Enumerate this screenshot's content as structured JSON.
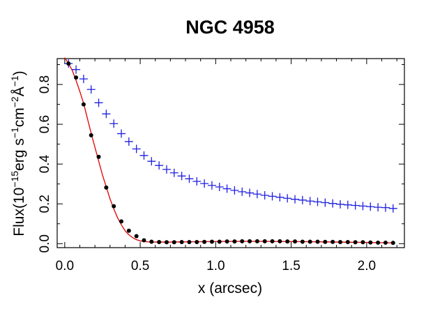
{
  "chart_data": {
    "type": "scatter",
    "title": "NGC 4958",
    "xlabel": "x (arcsec)",
    "ylabel": {
      "prefix": "Flux(10",
      "exp1": "−15",
      "mid1": "erg s",
      "exp2": "−1",
      "mid2": "cm",
      "exp3": "−2",
      "mid3": "Å",
      "exp4": "−1",
      "suffix": ")"
    },
    "xlim": [
      -0.05,
      2.25
    ],
    "ylim": [
      -0.02,
      0.93
    ],
    "xticks": [
      0.0,
      0.5,
      1.0,
      1.5,
      2.0
    ],
    "xtick_labels": [
      "0.0",
      "0.5",
      "1.0",
      "1.5",
      "2.0"
    ],
    "yticks": [
      0.0,
      0.2,
      0.4,
      0.6,
      0.8
    ],
    "ytick_labels": [
      "0.0",
      "0.2",
      "0.4",
      "0.6",
      "0.8"
    ],
    "colors": {
      "plus_series": "#1f1fe0",
      "dot_series": "#000000",
      "fit_line": "#e01010",
      "axes": "#000000"
    },
    "series": [
      {
        "name": "blue plus points",
        "marker": "plus",
        "x": [
          0.025,
          0.075,
          0.125,
          0.175,
          0.225,
          0.275,
          0.325,
          0.375,
          0.425,
          0.475,
          0.525,
          0.575,
          0.625,
          0.675,
          0.725,
          0.775,
          0.825,
          0.875,
          0.925,
          0.975,
          1.025,
          1.075,
          1.125,
          1.175,
          1.225,
          1.275,
          1.325,
          1.375,
          1.425,
          1.475,
          1.525,
          1.575,
          1.625,
          1.675,
          1.725,
          1.775,
          1.825,
          1.875,
          1.925,
          1.975,
          2.025,
          2.075,
          2.125,
          2.175
        ],
        "y": [
          0.905,
          0.875,
          0.828,
          0.775,
          0.708,
          0.652,
          0.603,
          0.553,
          0.513,
          0.476,
          0.443,
          0.414,
          0.393,
          0.373,
          0.356,
          0.34,
          0.326,
          0.313,
          0.302,
          0.293,
          0.285,
          0.276,
          0.268,
          0.261,
          0.255,
          0.249,
          0.243,
          0.238,
          0.233,
          0.228,
          0.223,
          0.219,
          0.214,
          0.21,
          0.206,
          0.202,
          0.198,
          0.195,
          0.192,
          0.189,
          0.186,
          0.183,
          0.181,
          0.177
        ]
      },
      {
        "name": "black dot points",
        "marker": "dot",
        "x": [
          0.025,
          0.075,
          0.125,
          0.175,
          0.225,
          0.275,
          0.325,
          0.375,
          0.425,
          0.475,
          0.525,
          0.575,
          0.625,
          0.675,
          0.725,
          0.775,
          0.825,
          0.875,
          0.925,
          0.975,
          1.025,
          1.075,
          1.125,
          1.175,
          1.225,
          1.275,
          1.325,
          1.375,
          1.425,
          1.475,
          1.525,
          1.575,
          1.625,
          1.675,
          1.725,
          1.775,
          1.825,
          1.875,
          1.925,
          1.975,
          2.025,
          2.075,
          2.125,
          2.175
        ],
        "y": [
          0.905,
          0.835,
          0.7,
          0.545,
          0.436,
          0.282,
          0.188,
          0.112,
          0.065,
          0.038,
          0.017,
          0.01,
          0.008,
          0.007,
          0.007,
          0.008,
          0.008,
          0.008,
          0.009,
          0.01,
          0.01,
          0.011,
          0.011,
          0.012,
          0.012,
          0.012,
          0.012,
          0.012,
          0.012,
          0.011,
          0.011,
          0.01,
          0.01,
          0.01,
          0.009,
          0.009,
          0.008,
          0.008,
          0.007,
          0.007,
          0.006,
          0.005,
          0.005,
          0.004
        ]
      },
      {
        "name": "red model fit",
        "marker": "line",
        "x": [
          0.0,
          0.025,
          0.05,
          0.075,
          0.1,
          0.125,
          0.15,
          0.175,
          0.2,
          0.225,
          0.25,
          0.275,
          0.3,
          0.325,
          0.35,
          0.375,
          0.4,
          0.425,
          0.45,
          0.475,
          0.5,
          0.525,
          0.55,
          0.6,
          0.7,
          0.8,
          0.9,
          1.0,
          1.2,
          1.4,
          1.6,
          1.8,
          2.0,
          2.175
        ],
        "y": [
          0.935,
          0.905,
          0.87,
          0.82,
          0.765,
          0.705,
          0.63,
          0.555,
          0.485,
          0.415,
          0.345,
          0.285,
          0.225,
          0.175,
          0.13,
          0.095,
          0.065,
          0.045,
          0.03,
          0.02,
          0.014,
          0.011,
          0.009,
          0.008,
          0.008,
          0.009,
          0.01,
          0.011,
          0.012,
          0.011,
          0.01,
          0.008,
          0.006,
          0.004
        ]
      }
    ]
  }
}
